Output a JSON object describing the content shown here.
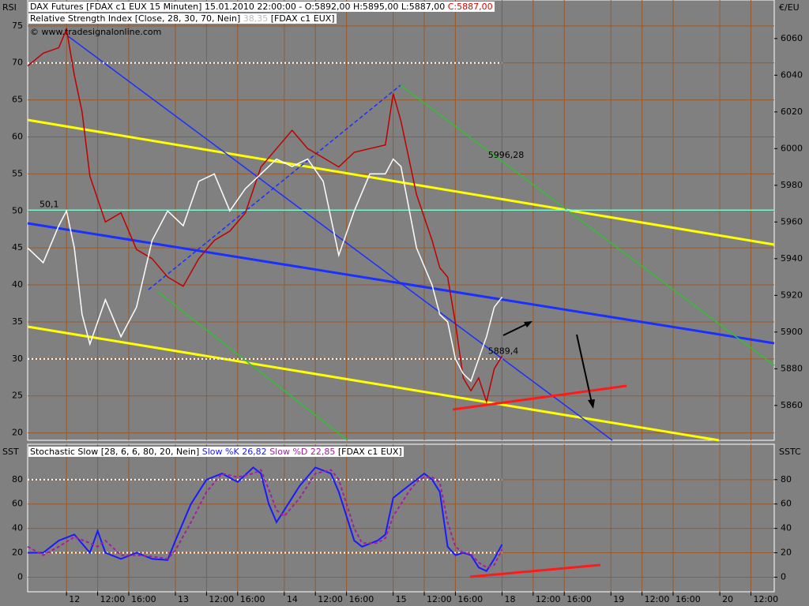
{
  "chart_data": [
    {
      "type": "line",
      "header": {
        "line1": "DAX Futures [FDAX c1 EUX  15 Minuten] 15.01.2010 22:00:00 - O:5892,00 H:5895,00 L:5887,00",
        "close": "C:5887,00",
        "line2": "Relative Strength Index [Close, 28, 30, 70, Nein]",
        "readout": "38,35",
        "source": "[FDAX c1 EUX]",
        "copyright": "© www.tradesignalonline.com"
      },
      "ylabel": "RSI",
      "y2label": "€/EU",
      "xlim": [
        -5,
        91
      ],
      "ylim": [
        19,
        78.5
      ],
      "y2lim": [
        5841,
        6081
      ],
      "yticks": [
        20,
        25,
        30,
        35,
        40,
        45,
        50,
        55,
        60,
        65,
        70,
        75
      ],
      "y2ticks": [
        5860,
        5880,
        5900,
        5920,
        5940,
        5960,
        5980,
        6000,
        6020,
        6040,
        6060
      ],
      "grid": true,
      "levels": [
        70,
        30
      ],
      "level_color": "#ffffff",
      "annotations": [
        {
          "value": 50.1,
          "label": "50,1",
          "color": "#80ffd0",
          "axis": "y"
        },
        {
          "value": 5996.28,
          "label": "5996,28",
          "color": "#40c040",
          "axis": "y2"
        },
        {
          "value": 5889.4,
          "label": "5889,4",
          "color": "#3050ff",
          "axis": "y2"
        }
      ],
      "x": [
        -5,
        -3,
        -1,
        0,
        1,
        2,
        3,
        5,
        7,
        9,
        11,
        13,
        15,
        17,
        19,
        21,
        23,
        25,
        27,
        29,
        31,
        33,
        35,
        37,
        39,
        41,
        42,
        43,
        45,
        47,
        48,
        49,
        50,
        51,
        52,
        53,
        54,
        55,
        56
      ],
      "series": [
        {
          "color": "#c00000",
          "axis": "y2",
          "values": [
            6045,
            6052,
            6055,
            6065,
            6040,
            6020,
            5985,
            5960,
            5965,
            5945,
            5940,
            5930,
            5925,
            5940,
            5950,
            5955,
            5965,
            5990,
            6000,
            6010,
            6000,
            5995,
            5990,
            5998,
            6000,
            6002,
            6030,
            6015,
            5975,
            5950,
            5935,
            5930,
            5905,
            5875,
            5868,
            5875,
            5862,
            5880,
            5887
          ]
        },
        {
          "color": "#ffffff",
          "values": [
            45,
            43,
            48,
            50,
            45,
            36,
            32,
            38,
            33,
            37,
            46,
            50,
            48,
            54,
            55,
            50,
            53,
            55,
            57,
            56,
            57,
            54,
            44,
            50,
            55,
            55,
            57,
            56,
            45,
            40,
            36,
            35,
            30,
            28,
            27,
            30,
            33,
            37,
            38.35
          ]
        }
      ]
    },
    {
      "type": "line",
      "header": {
        "line1": "Stochastic Slow [28, 6, 6, 80, 20, Nein]",
        "source": "[FDAX c1 EUX]"
      },
      "ylabel": "SST",
      "y2label": "SSTC",
      "xlim": [
        -5,
        91
      ],
      "ylim": [
        -12,
        109
      ],
      "yticks": [
        0,
        20,
        40,
        60,
        80
      ],
      "grid": true,
      "levels": [
        80,
        20
      ],
      "level_color": "#ffffff",
      "xticks": [
        {
          "value": 0,
          "label": "12"
        },
        {
          "value": 4,
          "label": "12:00"
        },
        {
          "value": 8,
          "label": "16:00"
        },
        {
          "value": 14,
          "label": "13"
        },
        {
          "value": 18,
          "label": "12:00"
        },
        {
          "value": 22,
          "label": "16:00"
        },
        {
          "value": 28,
          "label": "14"
        },
        {
          "value": 32,
          "label": "12:00"
        },
        {
          "value": 36,
          "label": "16:00"
        },
        {
          "value": 42,
          "label": "15"
        },
        {
          "value": 46,
          "label": "12:00"
        },
        {
          "value": 50,
          "label": "16:00"
        },
        {
          "value": 56,
          "label": "18"
        },
        {
          "value": 60,
          "label": "12:00"
        },
        {
          "value": 64,
          "label": "16:00"
        },
        {
          "value": 70,
          "label": "19"
        },
        {
          "value": 74,
          "label": "12:00"
        },
        {
          "value": 78,
          "label": "16:00"
        },
        {
          "value": 84,
          "label": "20"
        },
        {
          "value": 88,
          "label": "12:00"
        }
      ],
      "x": [
        -5,
        -3,
        -1,
        1,
        3,
        4,
        5,
        7,
        9,
        11,
        13,
        14,
        16,
        18,
        20,
        22,
        24,
        25,
        26,
        27,
        28,
        30,
        32,
        34,
        35,
        36,
        37,
        38,
        40,
        41,
        42,
        44,
        45,
        46,
        47,
        48,
        49,
        50,
        51,
        52,
        53,
        54,
        55,
        56
      ],
      "series": [
        {
          "name": "Slow %K 26,82",
          "color": "#1a1aff",
          "values": [
            20,
            20,
            30,
            35,
            20,
            38,
            20,
            15,
            20,
            15,
            14,
            30,
            60,
            80,
            85,
            78,
            90,
            85,
            60,
            45,
            55,
            75,
            90,
            85,
            70,
            50,
            30,
            25,
            30,
            35,
            65,
            75,
            80,
            85,
            80,
            70,
            25,
            18,
            20,
            18,
            8,
            5,
            15,
            26.82
          ]
        },
        {
          "name": "Slow %D 22,85",
          "color": "#a020a0",
          "dashed": true,
          "values": [
            25,
            18,
            25,
            33,
            28,
            25,
            30,
            18,
            18,
            17,
            15,
            22,
            45,
            70,
            85,
            82,
            85,
            88,
            72,
            55,
            50,
            65,
            85,
            88,
            80,
            60,
            40,
            28,
            28,
            32,
            50,
            70,
            78,
            82,
            82,
            78,
            45,
            25,
            20,
            19,
            12,
            8,
            10,
            22.85
          ]
        }
      ]
    }
  ]
}
